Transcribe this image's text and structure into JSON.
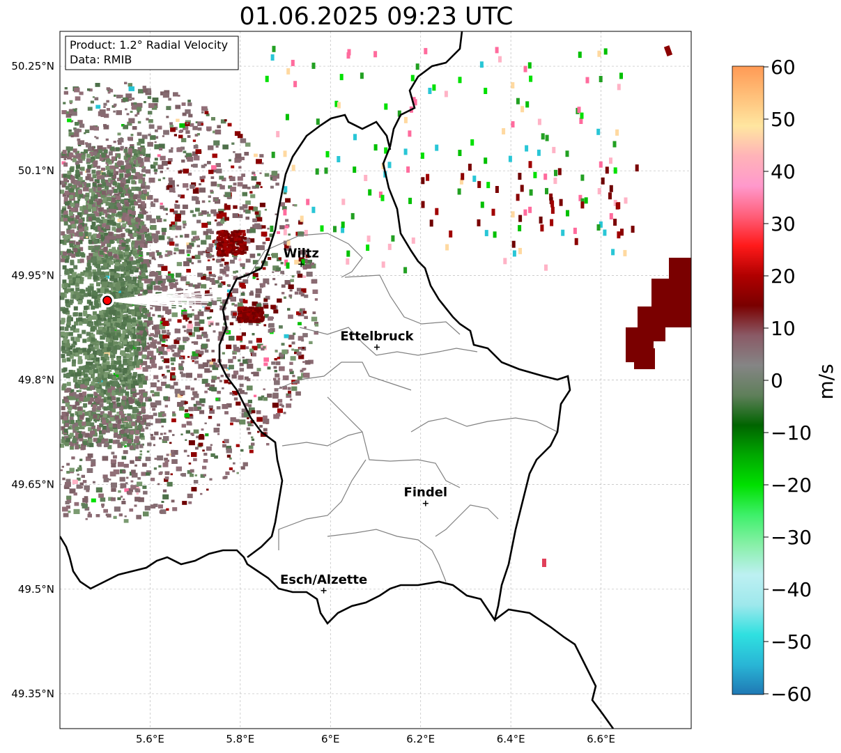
{
  "title": "01.06.2025 09:23 UTC",
  "info_box": {
    "product": "Product: 1.2° Radial Velocity",
    "data": "Data: RMIB"
  },
  "lat_ticks": [
    "50.25°N",
    "50.1°N",
    "49.95°N",
    "49.8°N",
    "49.65°N",
    "49.5°N",
    "49.35°N"
  ],
  "lon_ticks": [
    "5.6°E",
    "5.8°E",
    "6°E",
    "6.2°E",
    "6.4°E",
    "6.6°E"
  ],
  "cities": [
    {
      "name": "Wiltz",
      "lon": 5.935,
      "lat": 49.966
    },
    {
      "name": "Ettelbruck",
      "lon": 6.103,
      "lat": 49.847
    },
    {
      "name": "Findel",
      "lon": 6.211,
      "lat": 49.623
    },
    {
      "name": "Esch/Alzette",
      "lon": 5.985,
      "lat": 49.498
    }
  ],
  "radar_site": {
    "lon": 5.505,
    "lat": 49.914
  },
  "extent": {
    "lon_min": 5.4,
    "lon_max": 6.8,
    "lat_min": 49.3,
    "lat_max": 50.3
  },
  "colorbar": {
    "label": "m/s",
    "ticks": [
      "60",
      "50",
      "40",
      "30",
      "20",
      "10",
      "0",
      "−10",
      "−20",
      "−30",
      "−40",
      "−50",
      "−60"
    ],
    "range": [
      -60,
      60
    ],
    "stops": [
      "#1f78b4",
      "#29b6d6",
      "#2fe0e0",
      "#9ee8ec",
      "#bdf0f2",
      "#88f0a8",
      "#3ef06a",
      "#00e000",
      "#00a800",
      "#006400",
      "#5f7f5a",
      "#858585",
      "#8a5a66",
      "#7a0000",
      "#b00000",
      "#ff1a1a",
      "#ff5f7a",
      "#ff99cc",
      "#ffb3b8",
      "#ffe6a0",
      "#ffc07a",
      "#ff9a55"
    ]
  }
}
